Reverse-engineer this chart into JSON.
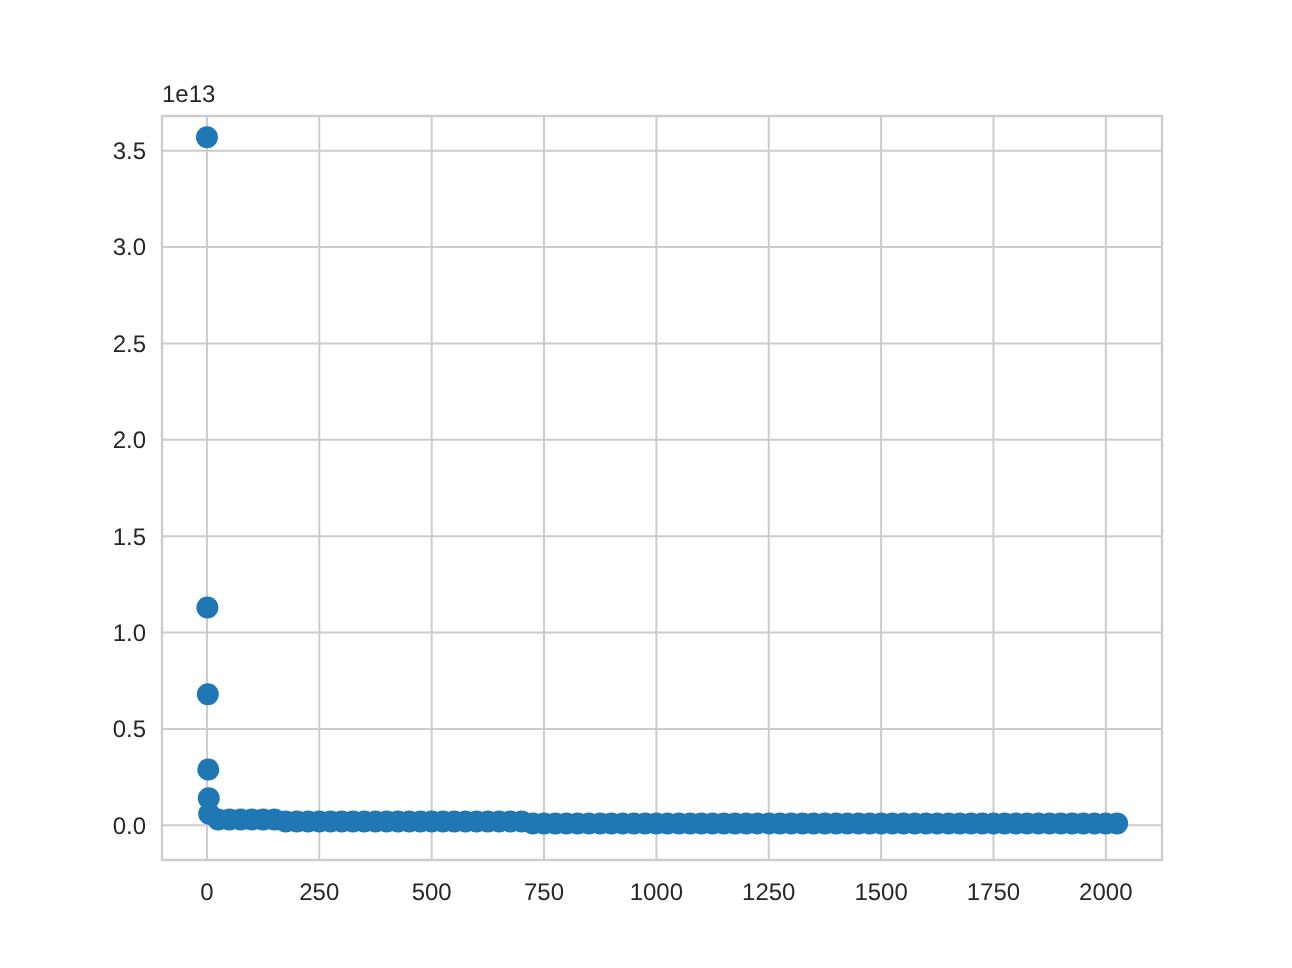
{
  "chart_data": {
    "type": "scatter",
    "x": [
      0,
      1,
      2,
      3,
      4,
      5,
      25,
      50,
      75,
      100,
      125,
      150,
      175,
      200,
      225,
      250,
      275,
      300,
      325,
      350,
      375,
      400,
      425,
      450,
      475,
      500,
      525,
      550,
      575,
      600,
      625,
      650,
      675,
      700,
      725,
      750,
      775,
      800,
      825,
      850,
      875,
      900,
      925,
      950,
      975,
      1000,
      1025,
      1050,
      1075,
      1100,
      1125,
      1150,
      1175,
      1200,
      1225,
      1250,
      1275,
      1300,
      1325,
      1350,
      1375,
      1400,
      1425,
      1450,
      1475,
      1500,
      1525,
      1550,
      1575,
      1600,
      1625,
      1650,
      1675,
      1700,
      1725,
      1750,
      1775,
      1800,
      1825,
      1850,
      1875,
      1900,
      1925,
      1950,
      1975,
      2000,
      2025
    ],
    "series": [
      {
        "color": "#1f77b4",
        "values": [
          3.57,
          1.13,
          0.68,
          0.29,
          0.14,
          0.06,
          0.03,
          0.03,
          0.03,
          0.03,
          0.03,
          0.03,
          0.02,
          0.02,
          0.02,
          0.02,
          0.02,
          0.02,
          0.02,
          0.02,
          0.02,
          0.02,
          0.02,
          0.02,
          0.02,
          0.02,
          0.02,
          0.02,
          0.02,
          0.02,
          0.02,
          0.02,
          0.02,
          0.02,
          0.01,
          0.01,
          0.01,
          0.01,
          0.01,
          0.01,
          0.01,
          0.01,
          0.01,
          0.01,
          0.01,
          0.01,
          0.01,
          0.01,
          0.01,
          0.01,
          0.01,
          0.01,
          0.01,
          0.01,
          0.01,
          0.01,
          0.01,
          0.01,
          0.01,
          0.01,
          0.01,
          0.01,
          0.01,
          0.01,
          0.01,
          0.01,
          0.01,
          0.01,
          0.01,
          0.01,
          0.01,
          0.01,
          0.01,
          0.01,
          0.01,
          0.01,
          0.01,
          0.01,
          0.01,
          0.01,
          0.01,
          0.01,
          0.01,
          0.01,
          0.01,
          0.01,
          0.01
        ]
      }
    ],
    "xlim": [
      -100,
      2125
    ],
    "xticks": [
      0,
      250,
      500,
      750,
      1000,
      1250,
      1500,
      1750,
      2000
    ],
    "ylim": [
      -0.18,
      3.68
    ],
    "yticks": [
      {
        "value": 0,
        "label": "0.0"
      },
      {
        "value": 0.5,
        "label": "0.5"
      },
      {
        "value": 1,
        "label": "1.0"
      },
      {
        "value": 1.5,
        "label": "1.5"
      },
      {
        "value": 2,
        "label": "2.0"
      },
      {
        "value": 2.5,
        "label": "2.5"
      },
      {
        "value": 3,
        "label": "3.0"
      },
      {
        "value": 3.5,
        "label": "3.5"
      }
    ],
    "annotations": [
      "1e13"
    ],
    "grid": true,
    "marker": "circle"
  }
}
